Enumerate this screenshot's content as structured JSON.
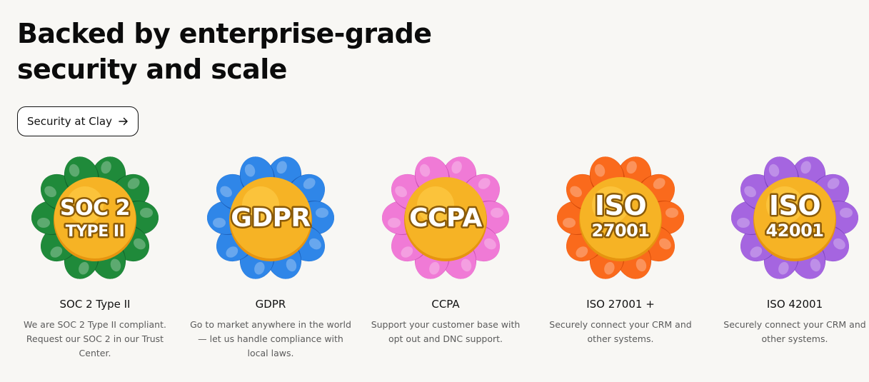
{
  "headline": "Backed by enterprise-grade security and scale",
  "cta": {
    "label": "Security at Clay",
    "icon": "arrow-right-icon"
  },
  "colors": {
    "center": "#f6b325",
    "center_shade": "#e69410",
    "text_outline": "#8a5a08"
  },
  "badges": [
    {
      "title": "SOC 2 Type II",
      "line1": "SOC 2",
      "line2": "TYPE II",
      "desc": "We are SOC 2 Type II compliant. Request our SOC 2 in our Trust Center.",
      "petal": "#1f8a3a",
      "petal_dark": "#12662a",
      "icon": "soc2-badge-icon"
    },
    {
      "title": "GDPR",
      "line1": "GDPR",
      "line2": "",
      "desc": "Go to market anywhere in the world — let us handle compliance with local laws.",
      "petal": "#2f86e8",
      "petal_dark": "#1d62bd",
      "icon": "gdpr-badge-icon"
    },
    {
      "title": "CCPA",
      "line1": "CCPA",
      "line2": "",
      "desc": "Support your customer base with opt out and DNC support.",
      "petal": "#f07ad6",
      "petal_dark": "#d053b6",
      "icon": "ccpa-badge-icon"
    },
    {
      "title": "ISO 27001 +",
      "line1": "ISO",
      "line2": "27001",
      "desc": "Securely connect your CRM and other systems.",
      "petal": "#fa6a1c",
      "petal_dark": "#d64c0a",
      "icon": "iso27001-badge-icon"
    },
    {
      "title": "ISO 42001",
      "line1": "ISO",
      "line2": "42001",
      "desc": "Securely connect your CRM and other systems.",
      "petal": "#a565e0",
      "petal_dark": "#8046c0",
      "icon": "iso42001-badge-icon"
    }
  ]
}
